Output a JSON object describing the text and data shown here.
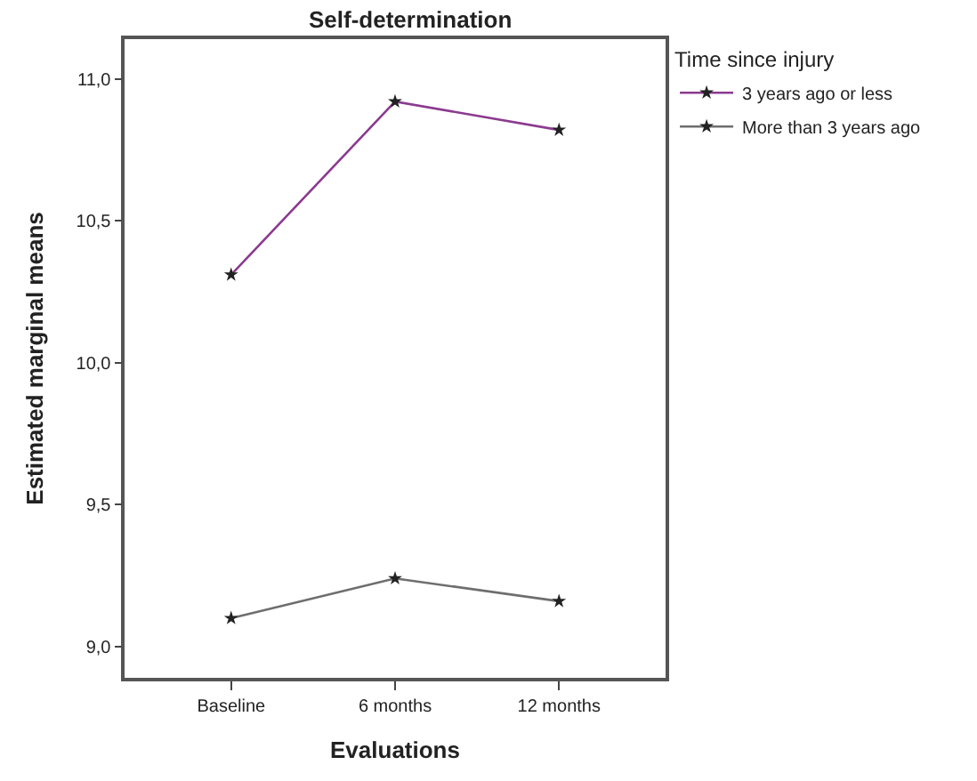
{
  "chart_data": {
    "type": "line",
    "title": "Self-determination",
    "xlabel": "Evaluations",
    "ylabel": "Estimated marginal means",
    "legend_title": "Time since injury",
    "categories": [
      "Baseline",
      "6 months",
      "12 months"
    ],
    "series": [
      {
        "name": "3 years ago or less",
        "color": "#8b3a8f",
        "values": [
          10.31,
          10.92,
          10.82
        ]
      },
      {
        "name": "More than 3 years ago",
        "color": "#6e6e6e",
        "values": [
          9.1,
          9.24,
          9.16
        ]
      }
    ],
    "ylim": [
      8.89,
      11.14
    ],
    "yticks": [
      {
        "value": 9.0,
        "label": "9,0"
      },
      {
        "value": 9.5,
        "label": "9,5"
      },
      {
        "value": 10.0,
        "label": "10,0"
      },
      {
        "value": 10.5,
        "label": "10,5"
      },
      {
        "value": 11.0,
        "label": "11,0"
      }
    ],
    "legend": "top right",
    "marker": "star",
    "line_style": "solid"
  }
}
